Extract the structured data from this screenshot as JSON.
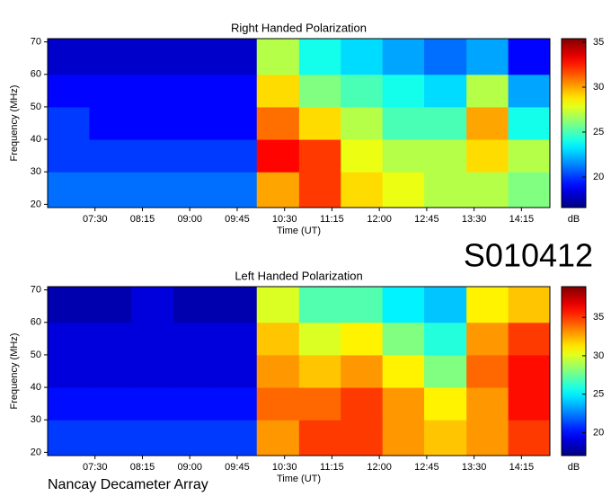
{
  "chart_data": [
    {
      "type": "heatmap",
      "title": "Right Handed Polarization",
      "x_label": "Time (UT)",
      "y_label": "Frequency (MHz)",
      "colorbar_label": "dB",
      "colormap": "jet",
      "xlim": [
        6.75,
        14.7
      ],
      "ylim": [
        19,
        71
      ],
      "zlim": [
        16.6,
        35.4
      ],
      "xticks": [
        {
          "value": 7.5,
          "label": "07:30"
        },
        {
          "value": 8.25,
          "label": "08:15"
        },
        {
          "value": 9,
          "label": "09:00"
        },
        {
          "value": 9.75,
          "label": "09:45"
        },
        {
          "value": 10.5,
          "label": "10:30"
        },
        {
          "value": 11.25,
          "label": "11:15"
        },
        {
          "value": 12,
          "label": "12:00"
        },
        {
          "value": 12.75,
          "label": "12:45"
        },
        {
          "value": 13.5,
          "label": "13:30"
        },
        {
          "value": 14.25,
          "label": "14:15"
        }
      ],
      "yticks": [
        20,
        30,
        40,
        50,
        60,
        70
      ],
      "zticks": [
        20,
        25,
        30,
        35
      ],
      "x_bins": [
        6.75,
        7.41,
        8.08,
        8.74,
        9.4,
        10.06,
        10.73,
        11.39,
        12.05,
        12.71,
        13.38,
        14.04,
        14.7
      ],
      "y_bins": [
        19,
        30,
        40,
        50,
        60,
        71
      ],
      "z": [
        [
          21,
          21,
          21,
          21,
          21,
          30,
          32,
          29,
          28,
          27,
          27,
          26
        ],
        [
          20,
          20,
          20,
          20,
          20,
          33,
          32,
          28,
          27,
          27,
          29,
          27
        ],
        [
          20,
          19,
          19,
          19,
          19,
          31,
          29,
          27,
          25,
          25,
          30,
          24
        ],
        [
          19,
          19,
          19,
          19,
          19,
          29,
          26,
          25,
          24,
          23,
          27,
          22
        ],
        [
          18,
          18,
          18,
          18,
          18,
          27,
          24,
          23,
          22,
          21,
          22,
          19
        ]
      ]
    },
    {
      "type": "heatmap",
      "title": "Left Handed Polarization",
      "x_label": "Time (UT)",
      "y_label": "Frequency (MHz)",
      "colorbar_label": "dB",
      "colormap": "jet",
      "xlim": [
        6.75,
        14.7
      ],
      "ylim": [
        19,
        71
      ],
      "zlim": [
        17,
        39
      ],
      "xticks": [
        {
          "value": 7.5,
          "label": "07:30"
        },
        {
          "value": 8.25,
          "label": "08:15"
        },
        {
          "value": 9,
          "label": "09:00"
        },
        {
          "value": 9.75,
          "label": "09:45"
        },
        {
          "value": 10.5,
          "label": "10:30"
        },
        {
          "value": 11.25,
          "label": "11:15"
        },
        {
          "value": 12,
          "label": "12:00"
        },
        {
          "value": 12.75,
          "label": "12:45"
        },
        {
          "value": 13.5,
          "label": "13:30"
        },
        {
          "value": 14.25,
          "label": "14:15"
        }
      ],
      "yticks": [
        20,
        30,
        40,
        50,
        60,
        70
      ],
      "zticks": [
        20,
        25,
        30,
        35
      ],
      "x_bins": [
        6.75,
        7.41,
        8.08,
        8.74,
        9.4,
        10.06,
        10.73,
        11.39,
        12.05,
        12.71,
        13.38,
        14.04,
        14.7
      ],
      "y_bins": [
        19,
        30,
        40,
        50,
        60,
        71
      ],
      "z": [
        [
          21,
          21,
          21,
          21,
          21,
          33,
          35,
          35,
          33,
          32,
          33,
          35
        ],
        [
          20,
          20,
          20,
          20,
          20,
          34,
          34,
          35,
          33,
          31,
          33,
          36
        ],
        [
          19,
          19,
          19,
          19,
          19,
          33,
          32,
          33,
          31,
          28,
          34,
          36
        ],
        [
          19,
          19,
          19,
          19,
          19,
          32,
          30,
          31,
          28,
          26,
          33,
          35
        ],
        [
          18,
          18,
          19,
          18,
          18,
          30,
          27,
          27,
          25,
          24,
          31,
          32
        ]
      ]
    }
  ],
  "id_label": "S010412",
  "footer": "Nancay Decameter Array"
}
